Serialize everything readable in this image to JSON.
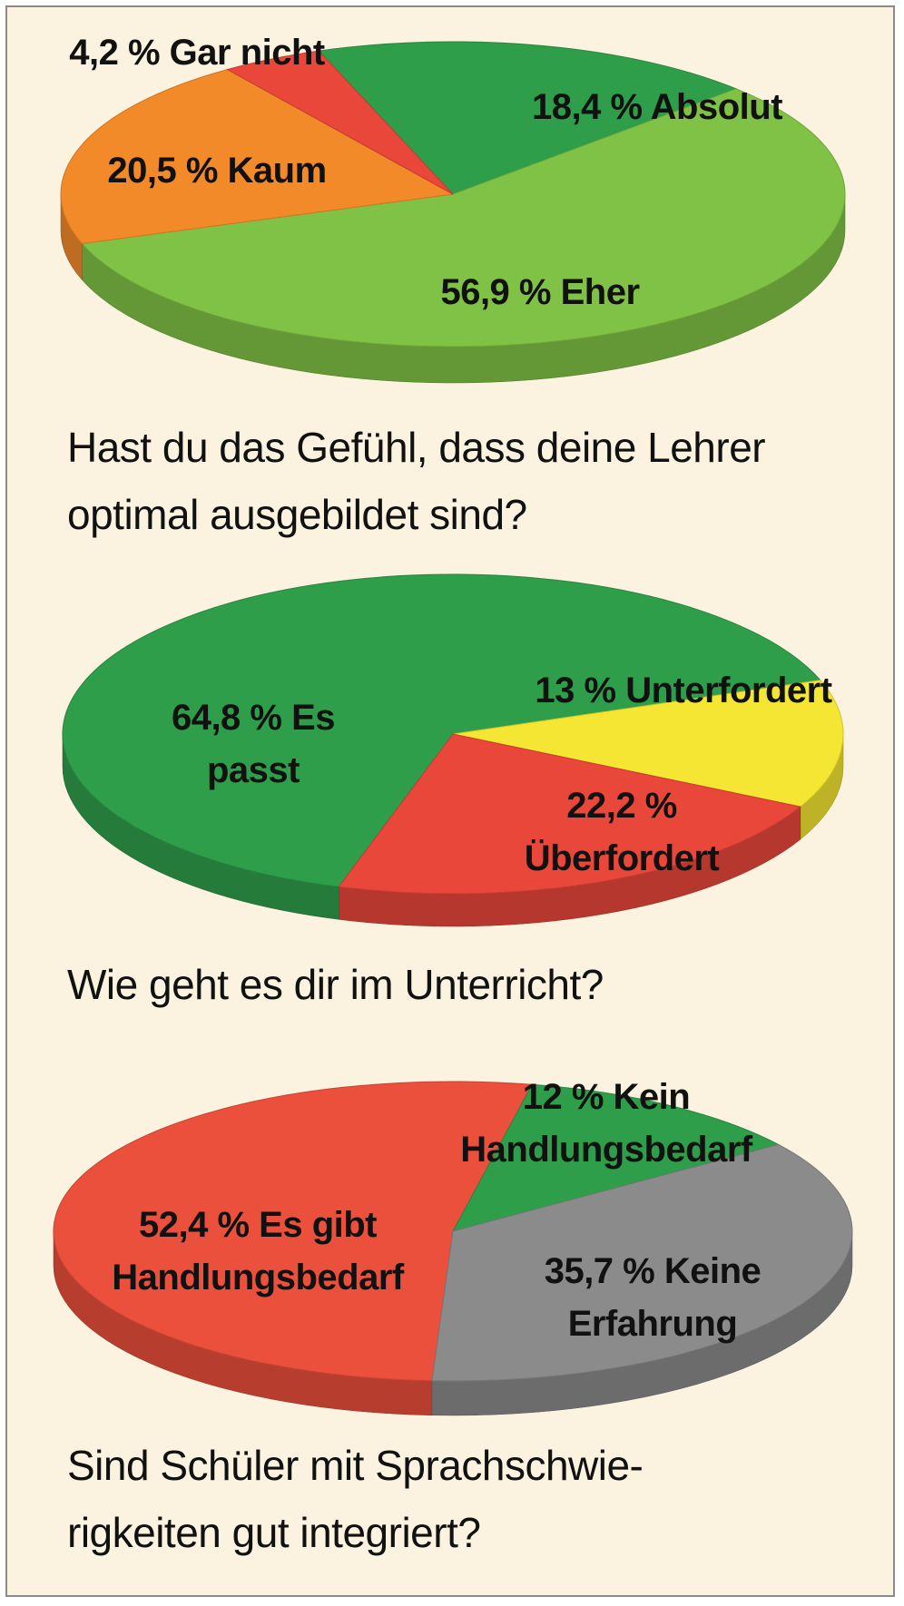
{
  "chart_data": [
    {
      "type": "pie",
      "title": "Hast du das Gefühl, dass deine Lehrer optimal ausgebildet sind?",
      "categories": [
        "Absolut",
        "Eher",
        "Kaum",
        "Gar nicht"
      ],
      "values": [
        18.4,
        56.9,
        20.5,
        4.2
      ],
      "value_labels": [
        "18,4 %",
        "56,9 %",
        "20,5 %",
        "4,2 %"
      ],
      "colors": [
        "#2f9e4a",
        "#80c245",
        "#f38a2a",
        "#e8473a"
      ]
    },
    {
      "type": "pie",
      "title": "Wie geht es dir im Unterricht?",
      "categories": [
        "Es passt",
        "Unterfordert",
        "Überfordert"
      ],
      "values": [
        64.8,
        13,
        22.2
      ],
      "value_labels": [
        "64,8 %",
        "13 %",
        "22,2 %"
      ],
      "colors": [
        "#2f9e4a",
        "#f4e632",
        "#e8473a"
      ]
    },
    {
      "type": "pie",
      "title": "Sind Schüler mit Sprachschwie-rigkeiten gut integriert?",
      "categories": [
        "Es gibt Handlungsbedarf",
        "Kein Handlungsbedarf",
        "Keine Erfahrung"
      ],
      "values": [
        52.4,
        12,
        35.7
      ],
      "value_labels": [
        "52,4 %",
        "12 %",
        "35,7 %"
      ],
      "colors": [
        "#ea503b",
        "#2f9e4a",
        "#8b8b8b"
      ]
    }
  ]
}
